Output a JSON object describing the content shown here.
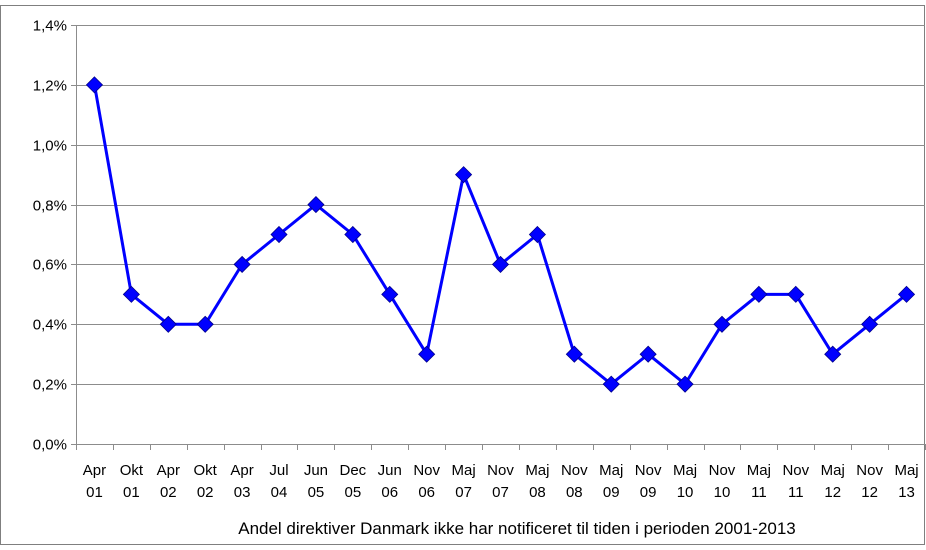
{
  "chart_data": {
    "type": "line",
    "title": "",
    "xlabel": "Andel direktiver Danmark ikke har notificeret til tiden i perioden 2001-2013",
    "ylabel": "",
    "ylim": [
      0,
      1.4
    ],
    "yticks": [
      {
        "value": 0.0,
        "label": "0,0%"
      },
      {
        "value": 0.2,
        "label": "0,2%"
      },
      {
        "value": 0.4,
        "label": "0,4%"
      },
      {
        "value": 0.6,
        "label": "0,6%"
      },
      {
        "value": 0.8,
        "label": "0,8%"
      },
      {
        "value": 1.0,
        "label": "1,0%"
      },
      {
        "value": 1.2,
        "label": "1,2%"
      },
      {
        "value": 1.4,
        "label": "1,4%"
      }
    ],
    "grid": "horizontal",
    "legend": "none",
    "categories": [
      {
        "month": "Apr",
        "year": "01"
      },
      {
        "month": "Okt",
        "year": "01"
      },
      {
        "month": "Apr",
        "year": "02"
      },
      {
        "month": "Okt",
        "year": "02"
      },
      {
        "month": "Apr",
        "year": "03"
      },
      {
        "month": "Jul",
        "year": "04"
      },
      {
        "month": "Jun",
        "year": "05"
      },
      {
        "month": "Dec",
        "year": "05"
      },
      {
        "month": "Jun",
        "year": "06"
      },
      {
        "month": "Nov",
        "year": "06"
      },
      {
        "month": "Maj",
        "year": "07"
      },
      {
        "month": "Nov",
        "year": "07"
      },
      {
        "month": "Maj",
        "year": "08"
      },
      {
        "month": "Nov",
        "year": "08"
      },
      {
        "month": "Maj",
        "year": "09"
      },
      {
        "month": "Nov",
        "year": "09"
      },
      {
        "month": "Maj",
        "year": "10"
      },
      {
        "month": "Nov",
        "year": "10"
      },
      {
        "month": "Maj",
        "year": "11"
      },
      {
        "month": "Nov",
        "year": "11"
      },
      {
        "month": "Maj",
        "year": "12"
      },
      {
        "month": "Nov",
        "year": "12"
      },
      {
        "month": "Maj",
        "year": "13"
      }
    ],
    "series": [
      {
        "color": "#0000ff",
        "marker": "diamond",
        "values": [
          1.2,
          0.5,
          0.4,
          0.4,
          0.6,
          0.7,
          0.8,
          0.7,
          0.5,
          0.3,
          0.9,
          0.6,
          0.7,
          0.3,
          0.2,
          0.3,
          0.2,
          0.4,
          0.5,
          0.5,
          0.3,
          0.4,
          0.5
        ]
      }
    ]
  }
}
